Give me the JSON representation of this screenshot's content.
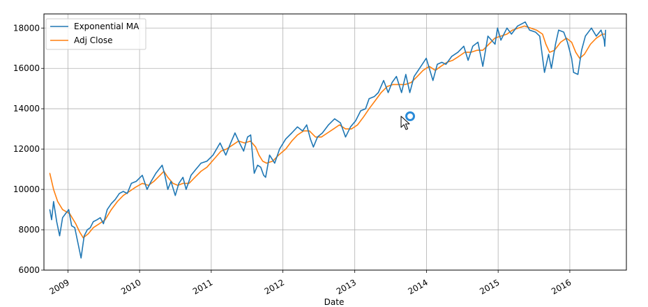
{
  "chart_data": {
    "type": "line",
    "title": "",
    "xlabel": "Date",
    "ylabel": "",
    "grid": true,
    "legend_position": "top-left",
    "xlim": [
      "2008-09-01",
      "2016-10-15"
    ],
    "ylim": [
      6000,
      18700
    ],
    "x_ticks": [
      {
        "date": "2009-01-01",
        "label": "2009"
      },
      {
        "date": "2010-01-01",
        "label": "2010"
      },
      {
        "date": "2011-01-01",
        "label": "2011"
      },
      {
        "date": "2012-01-01",
        "label": "2012"
      },
      {
        "date": "2013-01-01",
        "label": "2013"
      },
      {
        "date": "2014-01-01",
        "label": "2014"
      },
      {
        "date": "2015-01-01",
        "label": "2015"
      },
      {
        "date": "2016-01-01",
        "label": "2016"
      }
    ],
    "y_ticks": [
      6000,
      8000,
      10000,
      12000,
      14000,
      16000,
      18000
    ],
    "series": [
      {
        "name": "Exponential MA",
        "color": "#1f77b4",
        "points": [
          [
            "2008-10-01",
            9000
          ],
          [
            "2008-10-10",
            8500
          ],
          [
            "2008-10-20",
            9400
          ],
          [
            "2008-11-05",
            8400
          ],
          [
            "2008-11-20",
            7700
          ],
          [
            "2008-12-05",
            8600
          ],
          [
            "2008-12-20",
            8800
          ],
          [
            "2009-01-05",
            9000
          ],
          [
            "2009-01-20",
            8200
          ],
          [
            "2009-02-05",
            8100
          ],
          [
            "2009-02-20",
            7400
          ],
          [
            "2009-03-09",
            6600
          ],
          [
            "2009-03-25",
            7700
          ],
          [
            "2009-04-10",
            8000
          ],
          [
            "2009-04-25",
            8100
          ],
          [
            "2009-05-10",
            8400
          ],
          [
            "2009-05-30",
            8500
          ],
          [
            "2009-06-15",
            8600
          ],
          [
            "2009-07-01",
            8300
          ],
          [
            "2009-07-20",
            9000
          ],
          [
            "2009-08-10",
            9300
          ],
          [
            "2009-08-30",
            9500
          ],
          [
            "2009-09-20",
            9800
          ],
          [
            "2009-10-10",
            9900
          ],
          [
            "2009-10-30",
            9800
          ],
          [
            "2009-11-20",
            10300
          ],
          [
            "2009-12-15",
            10400
          ],
          [
            "2010-01-15",
            10700
          ],
          [
            "2010-02-08",
            10000
          ],
          [
            "2010-03-01",
            10400
          ],
          [
            "2010-03-25",
            10800
          ],
          [
            "2010-04-26",
            11200
          ],
          [
            "2010-05-10",
            10700
          ],
          [
            "2010-05-25",
            10000
          ],
          [
            "2010-06-10",
            10400
          ],
          [
            "2010-07-02",
            9700
          ],
          [
            "2010-07-20",
            10300
          ],
          [
            "2010-08-10",
            10600
          ],
          [
            "2010-08-26",
            10000
          ],
          [
            "2010-09-20",
            10700
          ],
          [
            "2010-10-15",
            11000
          ],
          [
            "2010-11-10",
            11300
          ],
          [
            "2010-12-10",
            11400
          ],
          [
            "2011-01-10",
            11700
          ],
          [
            "2011-02-15",
            12300
          ],
          [
            "2011-03-16",
            11700
          ],
          [
            "2011-04-10",
            12300
          ],
          [
            "2011-05-02",
            12800
          ],
          [
            "2011-05-25",
            12300
          ],
          [
            "2011-06-15",
            11900
          ],
          [
            "2011-07-05",
            12600
          ],
          [
            "2011-07-21",
            12700
          ],
          [
            "2011-08-08",
            10800
          ],
          [
            "2011-08-25",
            11200
          ],
          [
            "2011-09-10",
            11100
          ],
          [
            "2011-09-25",
            10700
          ],
          [
            "2011-10-05",
            10600
          ],
          [
            "2011-10-25",
            11700
          ],
          [
            "2011-11-20",
            11300
          ],
          [
            "2011-12-15",
            12000
          ],
          [
            "2012-01-15",
            12500
          ],
          [
            "2012-02-15",
            12800
          ],
          [
            "2012-03-15",
            13100
          ],
          [
            "2012-04-10",
            12900
          ],
          [
            "2012-05-01",
            13200
          ],
          [
            "2012-05-20",
            12500
          ],
          [
            "2012-06-04",
            12100
          ],
          [
            "2012-06-25",
            12600
          ],
          [
            "2012-07-20",
            12800
          ],
          [
            "2012-08-20",
            13200
          ],
          [
            "2012-09-20",
            13500
          ],
          [
            "2012-10-20",
            13300
          ],
          [
            "2012-11-15",
            12600
          ],
          [
            "2012-12-10",
            13100
          ],
          [
            "2013-01-05",
            13400
          ],
          [
            "2013-01-31",
            13900
          ],
          [
            "2013-02-25",
            14000
          ],
          [
            "2013-03-15",
            14500
          ],
          [
            "2013-04-10",
            14600
          ],
          [
            "2013-05-01",
            14800
          ],
          [
            "2013-05-28",
            15400
          ],
          [
            "2013-06-20",
            14800
          ],
          [
            "2013-07-10",
            15300
          ],
          [
            "2013-08-01",
            15600
          ],
          [
            "2013-08-27",
            14800
          ],
          [
            "2013-09-18",
            15700
          ],
          [
            "2013-10-08",
            14800
          ],
          [
            "2013-10-30",
            15600
          ],
          [
            "2013-11-20",
            15900
          ],
          [
            "2013-12-31",
            16500
          ],
          [
            "2014-02-03",
            15400
          ],
          [
            "2014-02-25",
            16200
          ],
          [
            "2014-03-20",
            16300
          ],
          [
            "2014-04-10",
            16200
          ],
          [
            "2014-05-10",
            16600
          ],
          [
            "2014-06-10",
            16800
          ],
          [
            "2014-07-10",
            17100
          ],
          [
            "2014-08-01",
            16400
          ],
          [
            "2014-08-25",
            17100
          ],
          [
            "2014-09-20",
            17300
          ],
          [
            "2014-10-15",
            16100
          ],
          [
            "2014-11-10",
            17600
          ],
          [
            "2014-12-16",
            17200
          ],
          [
            "2014-12-29",
            18000
          ],
          [
            "2015-01-15",
            17400
          ],
          [
            "2015-02-15",
            18000
          ],
          [
            "2015-03-10",
            17700
          ],
          [
            "2015-04-10",
            18100
          ],
          [
            "2015-05-19",
            18300
          ],
          [
            "2015-06-10",
            17900
          ],
          [
            "2015-07-10",
            17800
          ],
          [
            "2015-08-01",
            17600
          ],
          [
            "2015-08-25",
            15800
          ],
          [
            "2015-09-15",
            16700
          ],
          [
            "2015-09-29",
            16000
          ],
          [
            "2015-10-20",
            17200
          ],
          [
            "2015-11-05",
            17900
          ],
          [
            "2015-12-01",
            17800
          ],
          [
            "2015-12-20",
            17300
          ],
          [
            "2016-01-10",
            16500
          ],
          [
            "2016-01-20",
            15800
          ],
          [
            "2016-02-11",
            15700
          ],
          [
            "2016-03-01",
            16900
          ],
          [
            "2016-03-20",
            17600
          ],
          [
            "2016-04-20",
            18000
          ],
          [
            "2016-05-15",
            17600
          ],
          [
            "2016-06-08",
            17900
          ],
          [
            "2016-06-24",
            17400
          ],
          [
            "2016-06-27",
            17100
          ],
          [
            "2016-07-01",
            17900
          ]
        ]
      },
      {
        "name": "Adj Close",
        "color": "#ff7f0e",
        "points": [
          [
            "2008-10-01",
            10800
          ],
          [
            "2008-10-20",
            10000
          ],
          [
            "2008-11-10",
            9400
          ],
          [
            "2008-12-05",
            9000
          ],
          [
            "2009-01-10",
            8800
          ],
          [
            "2009-02-10",
            8300
          ],
          [
            "2009-03-01",
            7900
          ],
          [
            "2009-03-20",
            7600
          ],
          [
            "2009-04-15",
            7800
          ],
          [
            "2009-05-10",
            8100
          ],
          [
            "2009-06-10",
            8300
          ],
          [
            "2009-07-10",
            8500
          ],
          [
            "2009-08-10",
            9000
          ],
          [
            "2009-09-10",
            9400
          ],
          [
            "2009-10-10",
            9700
          ],
          [
            "2009-11-10",
            9900
          ],
          [
            "2009-12-10",
            10100
          ],
          [
            "2010-01-15",
            10300
          ],
          [
            "2010-02-15",
            10200
          ],
          [
            "2010-03-15",
            10400
          ],
          [
            "2010-04-15",
            10700
          ],
          [
            "2010-05-05",
            10900
          ],
          [
            "2010-05-25",
            10600
          ],
          [
            "2010-06-20",
            10300
          ],
          [
            "2010-07-15",
            10200
          ],
          [
            "2010-08-10",
            10300
          ],
          [
            "2010-09-10",
            10300
          ],
          [
            "2010-10-10",
            10600
          ],
          [
            "2010-11-10",
            10900
          ],
          [
            "2010-12-10",
            11100
          ],
          [
            "2011-01-15",
            11500
          ],
          [
            "2011-02-20",
            11900
          ],
          [
            "2011-03-20",
            12000
          ],
          [
            "2011-04-20",
            12200
          ],
          [
            "2011-05-20",
            12400
          ],
          [
            "2011-06-20",
            12300
          ],
          [
            "2011-07-20",
            12400
          ],
          [
            "2011-08-15",
            12100
          ],
          [
            "2011-09-01",
            11700
          ],
          [
            "2011-09-20",
            11400
          ],
          [
            "2011-10-10",
            11300
          ],
          [
            "2011-11-10",
            11400
          ],
          [
            "2011-12-10",
            11700
          ],
          [
            "2012-01-15",
            12000
          ],
          [
            "2012-02-15",
            12400
          ],
          [
            "2012-03-15",
            12700
          ],
          [
            "2012-04-15",
            12900
          ],
          [
            "2012-05-15",
            12900
          ],
          [
            "2012-06-15",
            12600
          ],
          [
            "2012-07-15",
            12600
          ],
          [
            "2012-08-15",
            12800
          ],
          [
            "2012-09-15",
            13000
          ],
          [
            "2012-10-15",
            13200
          ],
          [
            "2012-11-15",
            13000
          ],
          [
            "2012-12-15",
            13000
          ],
          [
            "2013-01-15",
            13200
          ],
          [
            "2013-02-15",
            13600
          ],
          [
            "2013-03-15",
            14000
          ],
          [
            "2013-04-15",
            14400
          ],
          [
            "2013-05-15",
            14800
          ],
          [
            "2013-06-15",
            15100
          ],
          [
            "2013-07-15",
            15200
          ],
          [
            "2013-08-15",
            15200
          ],
          [
            "2013-09-15",
            15200
          ],
          [
            "2013-10-15",
            15300
          ],
          [
            "2013-11-15",
            15600
          ],
          [
            "2013-12-15",
            15900
          ],
          [
            "2014-01-15",
            16100
          ],
          [
            "2014-02-15",
            15900
          ],
          [
            "2014-03-15",
            16100
          ],
          [
            "2014-04-15",
            16300
          ],
          [
            "2014-05-15",
            16400
          ],
          [
            "2014-06-15",
            16600
          ],
          [
            "2014-07-15",
            16800
          ],
          [
            "2014-08-15",
            16800
          ],
          [
            "2014-09-15",
            16900
          ],
          [
            "2014-10-15",
            16900
          ],
          [
            "2014-11-15",
            17200
          ],
          [
            "2014-12-15",
            17500
          ],
          [
            "2015-01-15",
            17600
          ],
          [
            "2015-02-15",
            17700
          ],
          [
            "2015-03-15",
            17900
          ],
          [
            "2015-04-15",
            18000
          ],
          [
            "2015-05-15",
            18100
          ],
          [
            "2015-06-15",
            18000
          ],
          [
            "2015-07-15",
            17900
          ],
          [
            "2015-08-15",
            17700
          ],
          [
            "2015-09-01",
            17200
          ],
          [
            "2015-09-20",
            16800
          ],
          [
            "2015-10-15",
            16900
          ],
          [
            "2015-11-15",
            17300
          ],
          [
            "2015-12-15",
            17500
          ],
          [
            "2016-01-10",
            17300
          ],
          [
            "2016-01-31",
            16800
          ],
          [
            "2016-02-20",
            16500
          ],
          [
            "2016-03-15",
            16700
          ],
          [
            "2016-04-15",
            17200
          ],
          [
            "2016-05-15",
            17500
          ],
          [
            "2016-06-15",
            17700
          ],
          [
            "2016-07-01",
            17700
          ]
        ]
      }
    ]
  },
  "legend": {
    "items": [
      {
        "label": "Exponential MA",
        "color": "#1f77b4"
      },
      {
        "label": "Adj Close",
        "color": "#ff7f0e"
      }
    ]
  },
  "overlay": {
    "cursor_icon": "mouse-pointer-icon",
    "loading_icon": "loading-ring-icon",
    "loading_color": "#2a8bd8"
  }
}
